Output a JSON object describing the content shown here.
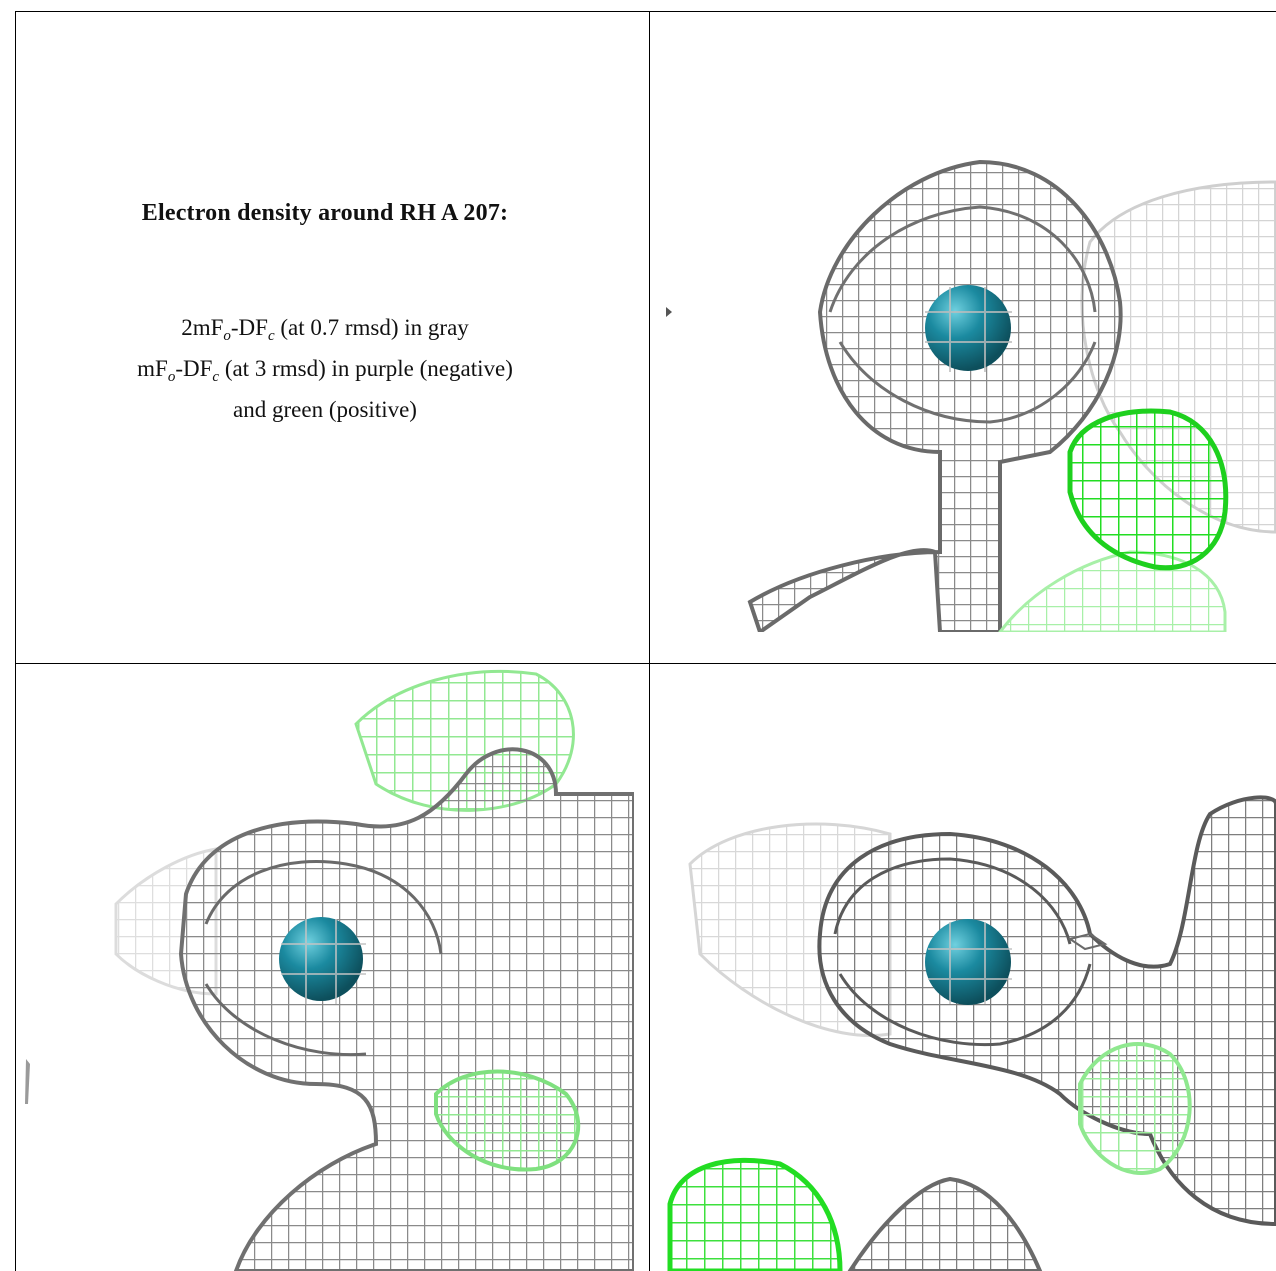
{
  "caption": {
    "title": "Electron density around RH A 207:",
    "line1": {
      "pre": "2mF",
      "sub1": "o",
      "mid": "-DF",
      "sub2": "c",
      "post": " (at 0.7 rmsd) in gray"
    },
    "line2": {
      "pre": "mF",
      "sub1": "o",
      "mid": "-DF",
      "sub2": "c",
      "post": " (at 3 rmsd) in purple (negative)"
    },
    "line3": "and green (positive)"
  },
  "colors": {
    "atom": "#1b8aa0",
    "mesh_gray": "#9a9a9a",
    "mesh_dark": "#555555",
    "mesh_green": "#22dd22",
    "mesh_green_light": "#8ee68e"
  },
  "panels": [
    "view-top-right",
    "view-bottom-left",
    "view-bottom-right"
  ]
}
